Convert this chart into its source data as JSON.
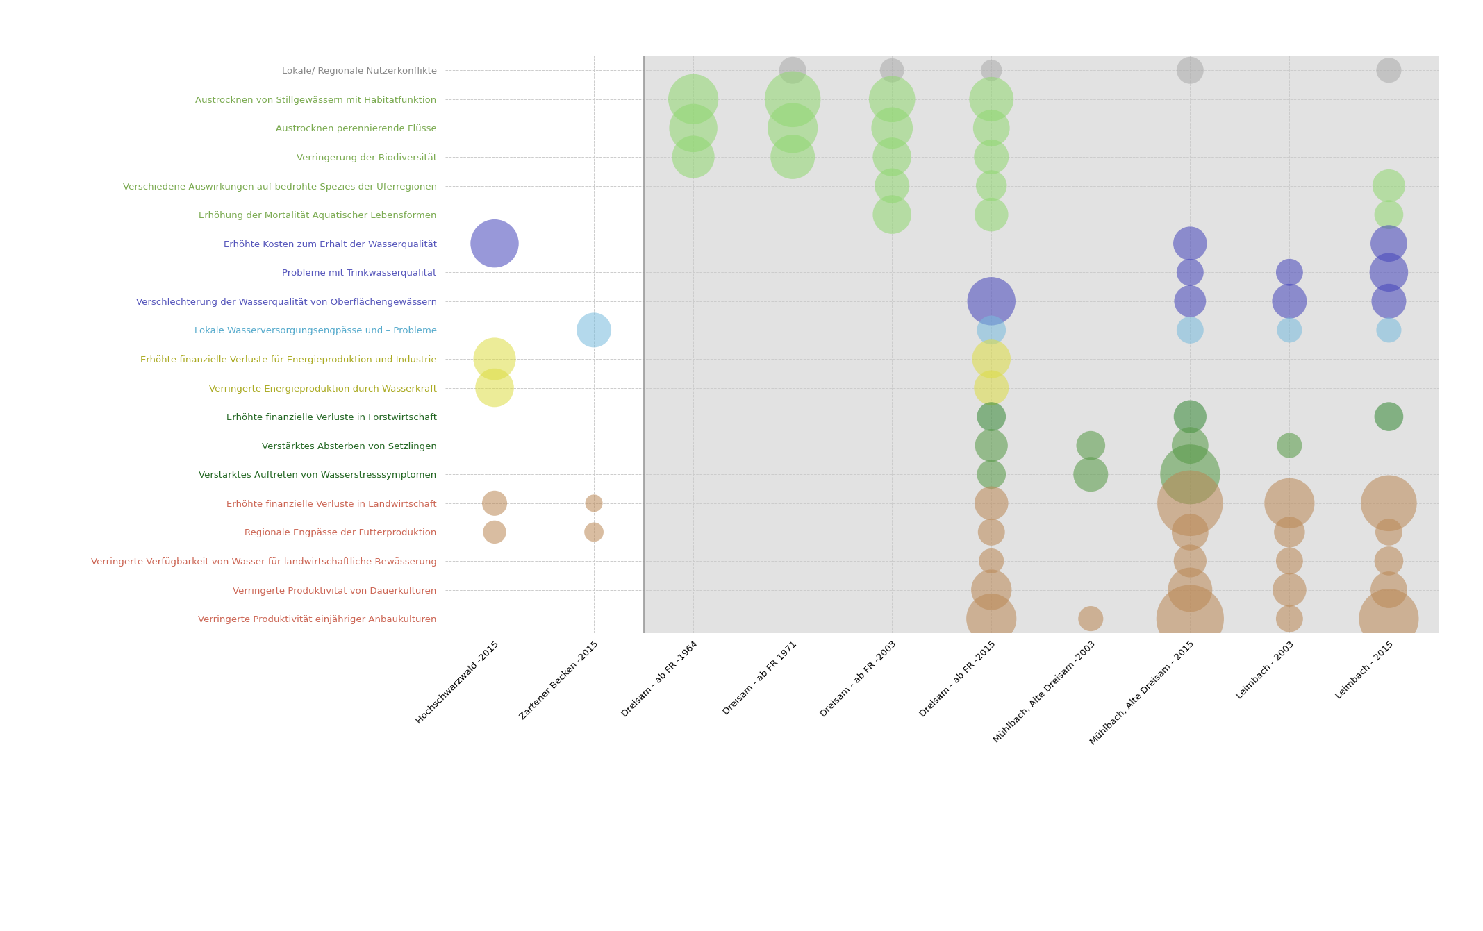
{
  "y_labels": [
    "Lokale/ Regionale Nutzerkonflikte",
    "Austrocknen von Stillgewässern mit Habitatfunktion",
    "Austrocknen perennierende Flüsse",
    "Verringerung der Biodiversität",
    "Verschiedene Auswirkungen auf bedrohte Spezies der Uferregionen",
    "Erhöhung der Mortalität Aquatischer Lebensformen",
    "Erhöhte Kosten zum Erhalt der Wasserqualität",
    "Probleme mit Trinkwasserqualität",
    "Verschlechterung der Wasserqualität von Oberflächengewässern",
    "Lokale Wasserversorgungsengpässe und – Probleme",
    "Erhöhte finanzielle Verluste für Energieproduktion und Industrie",
    "Verringerte Energieproduktion durch Wasserkraft",
    "Erhöhte finanzielle Verluste in Forstwirtschaft",
    "Verstärktes Absterben von Setzlingen",
    "Verstärktes Auftreten von Wasserstresssymptomen",
    "Erhöhte finanzielle Verluste in Landwirtschaft",
    "Regionale Engpässe der Futterproduktion",
    "Verringerte Verfügbarkeit von Wasser für landwirtschaftliche Bewässerung",
    "Verringerte Produktivität von Dauerkulturen",
    "Verringerte Produktivität einjähriger Anbaukulturen"
  ],
  "x_labels": [
    "Hochschwarzwald -2015",
    "Zartener Becken -2015",
    "Dreisam - ab FR -1964",
    "Dreisam - ab FR 1971",
    "Dreisam - ab FR -2003",
    "Dreisam - ab FR -2015",
    "Mühlbach, Alte Dreisam -2003",
    "Mühlbach, Alte Dreisam - 2015",
    "Leimbach - 2003",
    "Leimbach - 2015"
  ],
  "y_label_colors": [
    "#888888",
    "#7aaa50",
    "#7aaa50",
    "#7aaa50",
    "#7aaa50",
    "#7aaa50",
    "#5555bb",
    "#5555bb",
    "#5555bb",
    "#55aacc",
    "#aaaa22",
    "#aaaa22",
    "#226622",
    "#226622",
    "#226622",
    "#cc6655",
    "#cc6655",
    "#cc6655",
    "#cc6655",
    "#cc6655"
  ],
  "bubble_color_map": {
    "gray": "#aaaaaa",
    "light_green": "#90d870",
    "blue_dark": "#4444bb",
    "light_blue": "#77bbdd",
    "yellow": "#dddd44",
    "dark_green": "#338833",
    "medium_green": "#559944",
    "brown": "#bb8855"
  },
  "bubbles": [
    {
      "row": 0,
      "col": 3,
      "size": 28,
      "color": "gray"
    },
    {
      "row": 0,
      "col": 4,
      "size": 25,
      "color": "gray"
    },
    {
      "row": 0,
      "col": 5,
      "size": 22,
      "color": "gray"
    },
    {
      "row": 0,
      "col": 7,
      "size": 28,
      "color": "gray"
    },
    {
      "row": 0,
      "col": 9,
      "size": 26,
      "color": "gray"
    },
    {
      "row": 1,
      "col": 2,
      "size": 52,
      "color": "light_green"
    },
    {
      "row": 1,
      "col": 3,
      "size": 58,
      "color": "light_green"
    },
    {
      "row": 1,
      "col": 4,
      "size": 48,
      "color": "light_green"
    },
    {
      "row": 1,
      "col": 5,
      "size": 46,
      "color": "light_green"
    },
    {
      "row": 2,
      "col": 2,
      "size": 50,
      "color": "light_green"
    },
    {
      "row": 2,
      "col": 3,
      "size": 52,
      "color": "light_green"
    },
    {
      "row": 2,
      "col": 4,
      "size": 43,
      "color": "light_green"
    },
    {
      "row": 2,
      "col": 5,
      "size": 38,
      "color": "light_green"
    },
    {
      "row": 3,
      "col": 2,
      "size": 44,
      "color": "light_green"
    },
    {
      "row": 3,
      "col": 3,
      "size": 46,
      "color": "light_green"
    },
    {
      "row": 3,
      "col": 4,
      "size": 40,
      "color": "light_green"
    },
    {
      "row": 3,
      "col": 5,
      "size": 36,
      "color": "light_green"
    },
    {
      "row": 4,
      "col": 4,
      "size": 36,
      "color": "light_green"
    },
    {
      "row": 4,
      "col": 5,
      "size": 32,
      "color": "light_green"
    },
    {
      "row": 4,
      "col": 9,
      "size": 34,
      "color": "light_green"
    },
    {
      "row": 5,
      "col": 4,
      "size": 40,
      "color": "light_green"
    },
    {
      "row": 5,
      "col": 5,
      "size": 35,
      "color": "light_green"
    },
    {
      "row": 5,
      "col": 9,
      "size": 30,
      "color": "light_green"
    },
    {
      "row": 6,
      "col": 0,
      "size": 50,
      "color": "blue_dark"
    },
    {
      "row": 6,
      "col": 7,
      "size": 35,
      "color": "blue_dark"
    },
    {
      "row": 6,
      "col": 9,
      "size": 38,
      "color": "blue_dark"
    },
    {
      "row": 7,
      "col": 7,
      "size": 28,
      "color": "blue_dark"
    },
    {
      "row": 7,
      "col": 8,
      "size": 28,
      "color": "blue_dark"
    },
    {
      "row": 7,
      "col": 9,
      "size": 40,
      "color": "blue_dark"
    },
    {
      "row": 8,
      "col": 5,
      "size": 50,
      "color": "blue_dark"
    },
    {
      "row": 8,
      "col": 7,
      "size": 33,
      "color": "blue_dark"
    },
    {
      "row": 8,
      "col": 8,
      "size": 36,
      "color": "blue_dark"
    },
    {
      "row": 8,
      "col": 9,
      "size": 36,
      "color": "blue_dark"
    },
    {
      "row": 9,
      "col": 1,
      "size": 36,
      "color": "light_blue"
    },
    {
      "row": 9,
      "col": 5,
      "size": 30,
      "color": "light_blue"
    },
    {
      "row": 9,
      "col": 7,
      "size": 28,
      "color": "light_blue"
    },
    {
      "row": 9,
      "col": 8,
      "size": 26,
      "color": "light_blue"
    },
    {
      "row": 9,
      "col": 9,
      "size": 26,
      "color": "light_blue"
    },
    {
      "row": 10,
      "col": 0,
      "size": 44,
      "color": "yellow"
    },
    {
      "row": 10,
      "col": 5,
      "size": 40,
      "color": "yellow"
    },
    {
      "row": 11,
      "col": 0,
      "size": 40,
      "color": "yellow"
    },
    {
      "row": 11,
      "col": 5,
      "size": 36,
      "color": "yellow"
    },
    {
      "row": 12,
      "col": 5,
      "size": 30,
      "color": "dark_green"
    },
    {
      "row": 12,
      "col": 7,
      "size": 34,
      "color": "dark_green"
    },
    {
      "row": 12,
      "col": 9,
      "size": 30,
      "color": "dark_green"
    },
    {
      "row": 13,
      "col": 5,
      "size": 34,
      "color": "medium_green"
    },
    {
      "row": 13,
      "col": 6,
      "size": 30,
      "color": "medium_green"
    },
    {
      "row": 13,
      "col": 7,
      "size": 38,
      "color": "medium_green"
    },
    {
      "row": 13,
      "col": 8,
      "size": 26,
      "color": "medium_green"
    },
    {
      "row": 14,
      "col": 5,
      "size": 30,
      "color": "medium_green"
    },
    {
      "row": 14,
      "col": 6,
      "size": 36,
      "color": "medium_green"
    },
    {
      "row": 14,
      "col": 7,
      "size": 62,
      "color": "medium_green"
    },
    {
      "row": 15,
      "col": 0,
      "size": 26,
      "color": "brown"
    },
    {
      "row": 15,
      "col": 1,
      "size": 18,
      "color": "brown"
    },
    {
      "row": 15,
      "col": 5,
      "size": 35,
      "color": "brown"
    },
    {
      "row": 15,
      "col": 7,
      "size": 68,
      "color": "brown"
    },
    {
      "row": 15,
      "col": 8,
      "size": 52,
      "color": "brown"
    },
    {
      "row": 15,
      "col": 9,
      "size": 58,
      "color": "brown"
    },
    {
      "row": 16,
      "col": 0,
      "size": 24,
      "color": "brown"
    },
    {
      "row": 16,
      "col": 1,
      "size": 20,
      "color": "brown"
    },
    {
      "row": 16,
      "col": 5,
      "size": 28,
      "color": "brown"
    },
    {
      "row": 16,
      "col": 7,
      "size": 38,
      "color": "brown"
    },
    {
      "row": 16,
      "col": 8,
      "size": 32,
      "color": "brown"
    },
    {
      "row": 16,
      "col": 9,
      "size": 28,
      "color": "brown"
    },
    {
      "row": 17,
      "col": 5,
      "size": 26,
      "color": "brown"
    },
    {
      "row": 17,
      "col": 7,
      "size": 34,
      "color": "brown"
    },
    {
      "row": 17,
      "col": 8,
      "size": 28,
      "color": "brown"
    },
    {
      "row": 17,
      "col": 9,
      "size": 30,
      "color": "brown"
    },
    {
      "row": 18,
      "col": 5,
      "size": 42,
      "color": "brown"
    },
    {
      "row": 18,
      "col": 7,
      "size": 46,
      "color": "brown"
    },
    {
      "row": 18,
      "col": 8,
      "size": 35,
      "color": "brown"
    },
    {
      "row": 18,
      "col": 9,
      "size": 38,
      "color": "brown"
    },
    {
      "row": 19,
      "col": 5,
      "size": 52,
      "color": "brown"
    },
    {
      "row": 19,
      "col": 6,
      "size": 26,
      "color": "brown"
    },
    {
      "row": 19,
      "col": 7,
      "size": 70,
      "color": "brown"
    },
    {
      "row": 19,
      "col": 8,
      "size": 28,
      "color": "brown"
    },
    {
      "row": 19,
      "col": 9,
      "size": 62,
      "color": "brown"
    }
  ],
  "bubble_alpha": 0.55,
  "figsize": [
    21.35,
    13.41
  ]
}
